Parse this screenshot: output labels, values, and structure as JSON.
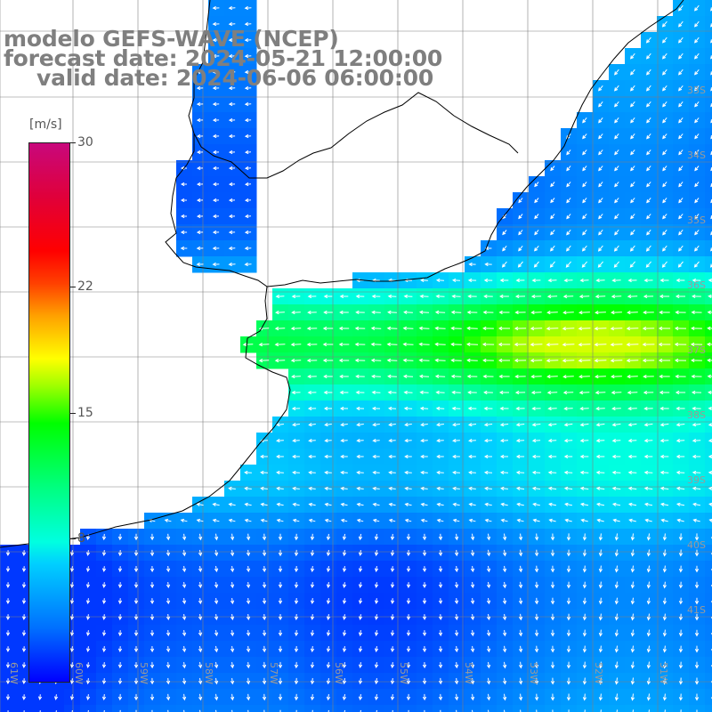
{
  "title": {
    "line1": "modelo GEFS-WAVE (NCEP)",
    "line2": "forecast date: 2024-05-21 12:00:00",
    "line3": "valid date: 2024-06-06 06:00:00"
  },
  "colorbar": {
    "unit": "[m/s]",
    "ticks": [
      "30",
      "22",
      "15",
      "8"
    ],
    "tick_values": [
      30,
      22,
      15,
      8
    ],
    "range": [
      0,
      30
    ],
    "stops": [
      {
        "value": 0,
        "color": "#0000ff"
      },
      {
        "value": 3,
        "color": "#0070ff"
      },
      {
        "value": 6.6,
        "color": "#00d0ff"
      },
      {
        "value": 8,
        "color": "#00ffe0"
      },
      {
        "value": 11,
        "color": "#00ff80"
      },
      {
        "value": 15,
        "color": "#00ff00"
      },
      {
        "value": 18,
        "color": "#ffff00"
      },
      {
        "value": 22,
        "color": "#ff0000"
      },
      {
        "value": 30,
        "color": "#c8087c"
      }
    ]
  },
  "grid": {
    "lat_labels": [
      "33S",
      "34S",
      "35S",
      "36S",
      "37S",
      "38S",
      "39S",
      "40S",
      "41S"
    ],
    "lon_labels": [
      "61W",
      "60W",
      "59W",
      "58W",
      "57W",
      "56W",
      "55W",
      "54W",
      "53W",
      "52W",
      "51W"
    ]
  },
  "field": {
    "variable": "wind speed",
    "unit": "m/s",
    "peak_value": 17,
    "peak_lat": -36.2,
    "peak_lon": -53.3
  },
  "colors": {
    "land": "#ffffff",
    "coast": "#000000",
    "gridline": "#808080",
    "title": "#7f7f7f"
  }
}
